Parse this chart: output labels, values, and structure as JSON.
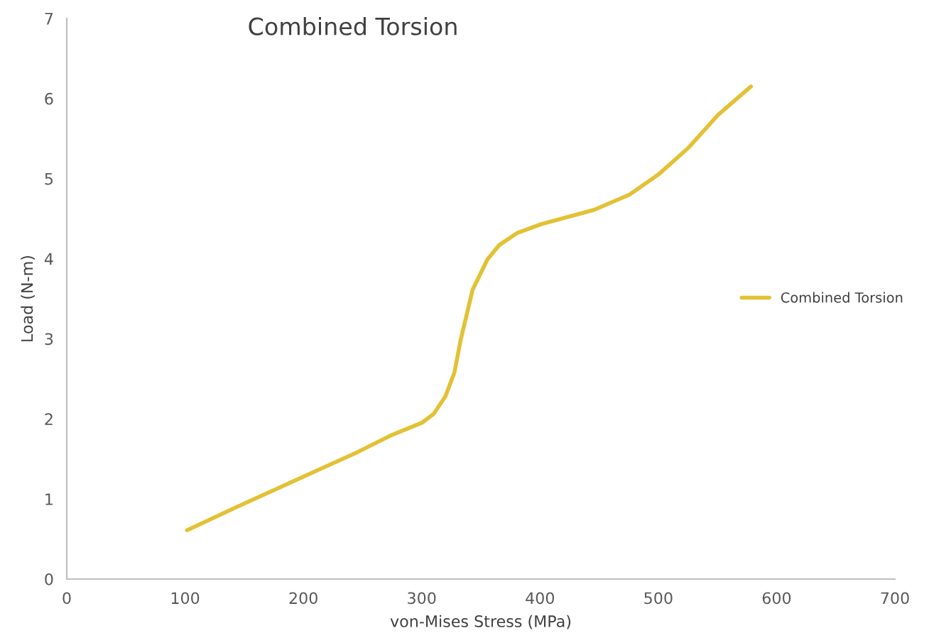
{
  "chart_data": {
    "type": "line",
    "title": "Combined Torsion",
    "xlabel": "von-Mises Stress (MPa)",
    "ylabel": "Load (N-m)",
    "xlim": [
      0,
      700
    ],
    "xticks": [
      0,
      100,
      200,
      300,
      400,
      500,
      600,
      700
    ],
    "ylim": [
      0,
      7
    ],
    "yticks": [
      0,
      1,
      2,
      3,
      4,
      5,
      6,
      7
    ],
    "grid": false,
    "legend": "right",
    "marker": "none",
    "line_style": "solid",
    "series": [
      {
        "name": "Combined Torsion",
        "color": "#e3c135",
        "x": [
          101.6,
          145.2,
          200.3,
          245,
          275,
          300,
          310,
          320,
          327.7,
          333,
          343,
          355.5,
          365.5,
          380.6,
          400.6,
          445.6,
          475.7,
          500.8,
          525.8,
          550.8,
          578.3
        ],
        "values": [
          0.61,
          0.91,
          1.28,
          1.58,
          1.8,
          1.95,
          2.06,
          2.28,
          2.58,
          2.99,
          3.61,
          3.99,
          4.17,
          4.32,
          4.43,
          4.61,
          4.8,
          5.06,
          5.39,
          5.8,
          6.15
        ]
      }
    ]
  }
}
